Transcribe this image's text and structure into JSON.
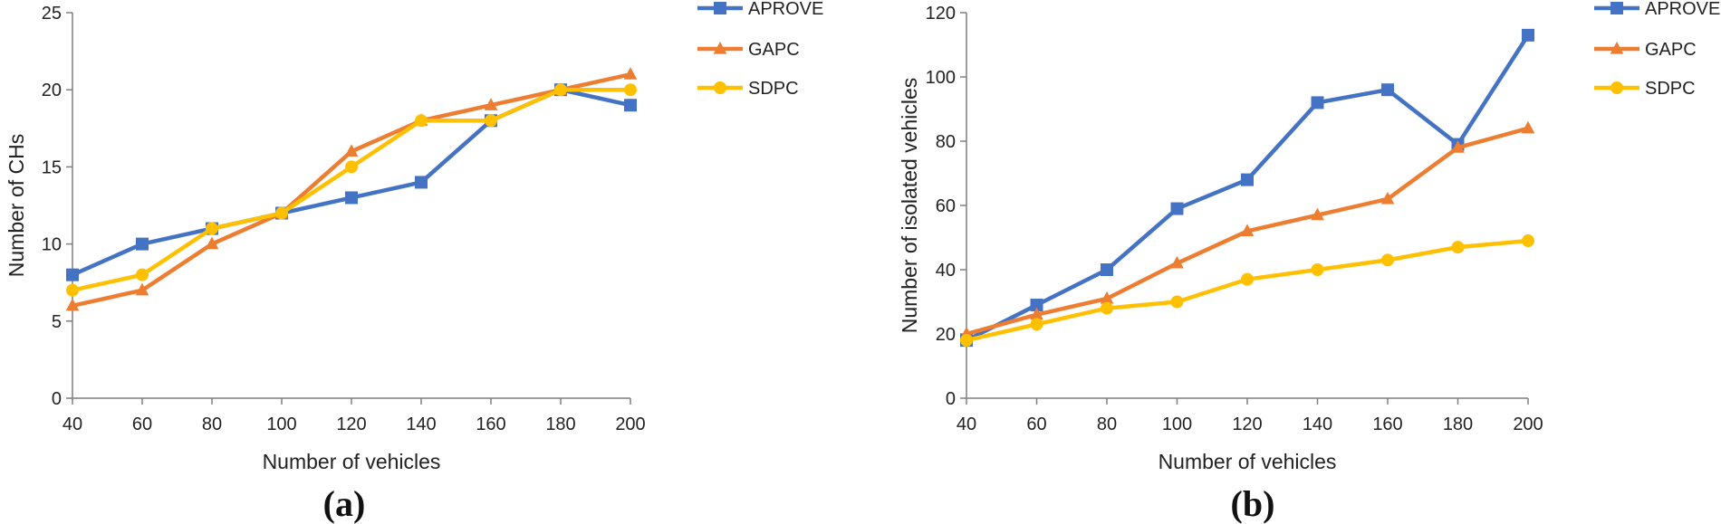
{
  "chart_data": [
    {
      "type": "line",
      "caption": "(a)",
      "xlabel": "Number of vehicles",
      "ylabel": "Number of CHs",
      "x": [
        40,
        60,
        80,
        100,
        120,
        140,
        160,
        180,
        200
      ],
      "xlim": [
        40,
        200
      ],
      "ylim": [
        0,
        25
      ],
      "yticks": [
        0,
        5,
        10,
        15,
        20,
        25
      ],
      "grid": false,
      "legend_position": "right",
      "series": [
        {
          "name": "APROVE",
          "marker": "square",
          "color": "#4472C4",
          "values": [
            8,
            10,
            11,
            12,
            13,
            14,
            18,
            20,
            19
          ]
        },
        {
          "name": "GAPC",
          "marker": "triangle",
          "color": "#ED7D31",
          "values": [
            6,
            7,
            10,
            12,
            16,
            18,
            19,
            20,
            21
          ]
        },
        {
          "name": "SDPC",
          "marker": "circle",
          "color": "#FFC000",
          "values": [
            7,
            8,
            11,
            12,
            15,
            18,
            18,
            20,
            20
          ]
        }
      ]
    },
    {
      "type": "line",
      "caption": "(b)",
      "xlabel": "Number of vehicles",
      "ylabel": "Number of isolated vehicles",
      "x": [
        40,
        60,
        80,
        100,
        120,
        140,
        160,
        180,
        200
      ],
      "xlim": [
        40,
        200
      ],
      "ylim": [
        0,
        120
      ],
      "yticks": [
        0,
        20,
        40,
        60,
        80,
        100,
        120
      ],
      "grid": false,
      "legend_position": "right",
      "series": [
        {
          "name": "APROVE",
          "marker": "square",
          "color": "#4472C4",
          "values": [
            18,
            29,
            40,
            59,
            68,
            92,
            96,
            79,
            113
          ]
        },
        {
          "name": "GAPC",
          "marker": "triangle",
          "color": "#ED7D31",
          "values": [
            20,
            26,
            31,
            42,
            52,
            57,
            62,
            78,
            84
          ]
        },
        {
          "name": "SDPC",
          "marker": "circle",
          "color": "#FFC000",
          "values": [
            18,
            23,
            28,
            30,
            37,
            40,
            43,
            47,
            49
          ]
        }
      ]
    }
  ]
}
